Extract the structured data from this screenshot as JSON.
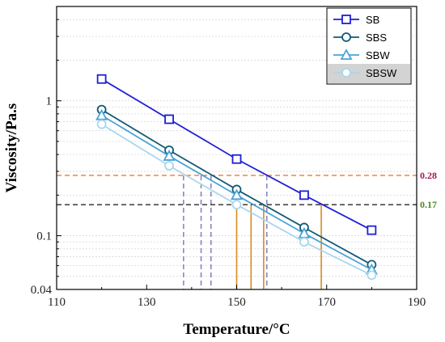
{
  "chart_data": {
    "type": "line",
    "xlabel": "Temperature/°C",
    "ylabel": "Viscosity/Pa.s",
    "xlim": [
      110,
      190
    ],
    "ylim": [
      0.04,
      5
    ],
    "yscale": "log",
    "grid": true,
    "legend_position": "top-right",
    "x_ticks": [
      110,
      130,
      150,
      170,
      190
    ],
    "y_ticks": [
      {
        "value": 0.04,
        "label": "0.04"
      },
      {
        "value": 0.1,
        "label": "0.1"
      },
      {
        "value": 1,
        "label": "1"
      }
    ],
    "x": [
      120,
      135,
      150,
      165,
      180
    ],
    "series": [
      {
        "name": "SB",
        "values": [
          1.45,
          0.73,
          0.37,
          0.2,
          0.11
        ],
        "color": "#1f1fd6",
        "marker": "square"
      },
      {
        "name": "SBS",
        "values": [
          0.86,
          0.43,
          0.22,
          0.115,
          0.061
        ],
        "color": "#135a75",
        "marker": "circle"
      },
      {
        "name": "SBW",
        "values": [
          0.78,
          0.39,
          0.2,
          0.104,
          0.056
        ],
        "color": "#4aa3d6",
        "marker": "triangle"
      },
      {
        "name": "SBSW",
        "values": [
          0.67,
          0.33,
          0.17,
          0.09,
          0.051
        ],
        "color": "#a9d6ee",
        "marker": "circle"
      }
    ],
    "reference_lines": [
      {
        "value": 0.28,
        "label": "0.28",
        "color": "#f07a2a",
        "label_color": "#a3195b"
      },
      {
        "value": 0.17,
        "label": "0.17",
        "color": "#111111",
        "label_color": "#4a8a1e"
      }
    ],
    "drop_lines_at_028": {
      "x": [
        138.2,
        142.1,
        144.3,
        156.7
      ],
      "color": "#8a84c4"
    },
    "drop_lines_at_017": {
      "x": [
        150.0,
        153.2,
        156.0,
        168.8
      ],
      "color": "#d98a1e"
    }
  }
}
